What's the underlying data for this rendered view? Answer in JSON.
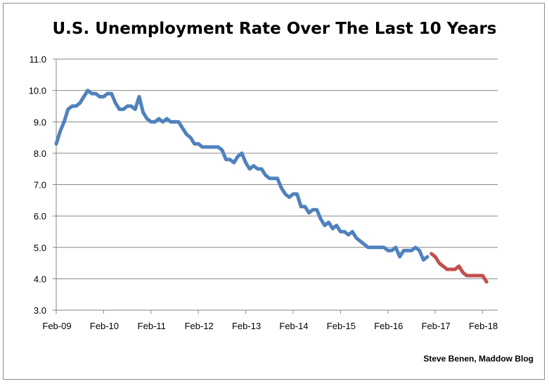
{
  "chart_data": {
    "type": "line",
    "title": "U.S. Unemployment Rate Over The Last 10 Years",
    "xlabel": "",
    "ylabel": "",
    "credit": "Steve Benen, Maddow Blog",
    "ylim": [
      3.0,
      11.0
    ],
    "yticks": [
      "3.0",
      "4.0",
      "5.0",
      "6.0",
      "7.0",
      "8.0",
      "9.0",
      "10.0",
      "11.0"
    ],
    "xticks": [
      "Feb-09",
      "Feb-10",
      "Feb-11",
      "Feb-12",
      "Feb-13",
      "Feb-14",
      "Feb-15",
      "Feb-16",
      "Feb-17",
      "Feb-18"
    ],
    "grid": "horizontal",
    "legend": "none",
    "colors": {
      "series_1": "#4f81bd",
      "series_2": "#c0504d",
      "grid": "#868686"
    },
    "series": [
      {
        "color": "#4f81bd",
        "x": [
          "Feb-09",
          "Mar-09",
          "Apr-09",
          "May-09",
          "Jun-09",
          "Jul-09",
          "Aug-09",
          "Sep-09",
          "Oct-09",
          "Nov-09",
          "Dec-09",
          "Jan-10",
          "Feb-10",
          "Mar-10",
          "Apr-10",
          "May-10",
          "Jun-10",
          "Jul-10",
          "Aug-10",
          "Sep-10",
          "Oct-10",
          "Nov-10",
          "Dec-10",
          "Jan-11",
          "Feb-11",
          "Mar-11",
          "Apr-11",
          "May-11",
          "Jun-11",
          "Jul-11",
          "Aug-11",
          "Sep-11",
          "Oct-11",
          "Nov-11",
          "Dec-11",
          "Jan-12",
          "Feb-12",
          "Mar-12",
          "Apr-12",
          "May-12",
          "Jun-12",
          "Jul-12",
          "Aug-12",
          "Sep-12",
          "Oct-12",
          "Nov-12",
          "Dec-12",
          "Jan-13",
          "Feb-13",
          "Mar-13",
          "Apr-13",
          "May-13",
          "Jun-13",
          "Jul-13",
          "Aug-13",
          "Sep-13",
          "Oct-13",
          "Nov-13",
          "Dec-13",
          "Jan-14",
          "Feb-14",
          "Mar-14",
          "Apr-14",
          "May-14",
          "Jun-14",
          "Jul-14",
          "Aug-14",
          "Sep-14",
          "Oct-14",
          "Nov-14",
          "Dec-14",
          "Jan-15",
          "Feb-15",
          "Mar-15",
          "Apr-15",
          "May-15",
          "Jun-15",
          "Jul-15",
          "Aug-15",
          "Sep-15",
          "Oct-15",
          "Nov-15",
          "Dec-15",
          "Jan-16",
          "Feb-16",
          "Mar-16",
          "Apr-16",
          "May-16",
          "Jun-16",
          "Jul-16",
          "Aug-16",
          "Sep-16",
          "Oct-16",
          "Nov-16",
          "Dec-16"
        ],
        "values": [
          8.3,
          8.7,
          9.0,
          9.4,
          9.5,
          9.5,
          9.6,
          9.8,
          10.0,
          9.9,
          9.9,
          9.8,
          9.8,
          9.9,
          9.9,
          9.6,
          9.4,
          9.4,
          9.5,
          9.5,
          9.4,
          9.8,
          9.3,
          9.1,
          9.0,
          9.0,
          9.1,
          9.0,
          9.1,
          9.0,
          9.0,
          9.0,
          8.8,
          8.6,
          8.5,
          8.3,
          8.3,
          8.2,
          8.2,
          8.2,
          8.2,
          8.2,
          8.1,
          7.8,
          7.8,
          7.7,
          7.9,
          8.0,
          7.7,
          7.5,
          7.6,
          7.5,
          7.5,
          7.3,
          7.2,
          7.2,
          7.2,
          6.9,
          6.7,
          6.6,
          6.7,
          6.7,
          6.3,
          6.3,
          6.1,
          6.2,
          6.2,
          5.9,
          5.7,
          5.8,
          5.6,
          5.7,
          5.5,
          5.5,
          5.4,
          5.5,
          5.3,
          5.2,
          5.1,
          5.0,
          5.0,
          5.0,
          5.0,
          5.0,
          4.9,
          4.9,
          5.0,
          4.7,
          4.9,
          4.9,
          4.9,
          5.0,
          4.9,
          4.6,
          4.7
        ]
      },
      {
        "color": "#c0504d",
        "x": [
          "Jan-17",
          "Feb-17",
          "Mar-17",
          "Apr-17",
          "May-17",
          "Jun-17",
          "Jul-17",
          "Aug-17",
          "Sep-17",
          "Oct-17",
          "Nov-17",
          "Dec-17",
          "Jan-18",
          "Feb-18",
          "Mar-18"
        ],
        "values": [
          4.8,
          4.7,
          4.5,
          4.4,
          4.3,
          4.3,
          4.3,
          4.4,
          4.2,
          4.1,
          4.1,
          4.1,
          4.1,
          4.1,
          3.9
        ]
      }
    ]
  }
}
